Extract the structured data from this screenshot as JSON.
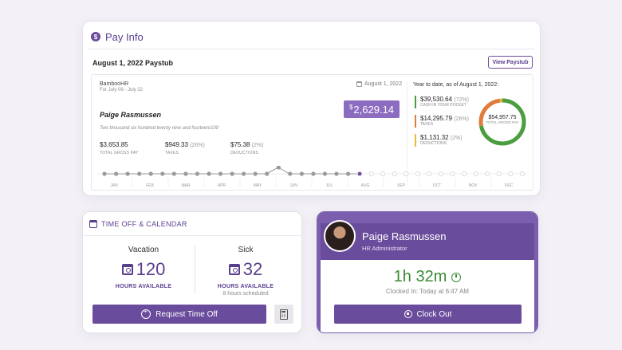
{
  "pay_info": {
    "title": "Pay Info",
    "paystub_date": "August 1, 2022 Paystub",
    "view_button": "View Paystub",
    "company": "BambooHR",
    "period": "For July 09 - July 22",
    "stub_date": "August 1, 2022",
    "payee": "Paige Rasmussen",
    "net_currency": "$",
    "net_amount": "2,629.14",
    "amount_words": "Two thousand six hundred twenty nine and fourteen/100",
    "summary": [
      {
        "value": "$3,653.85",
        "pct": "",
        "label": "TOTAL GROSS PAY"
      },
      {
        "value": "$949.33",
        "pct": "(26%)",
        "label": "TAXES"
      },
      {
        "value": "$75.38",
        "pct": "(2%)",
        "label": "DEDUCTIONS"
      }
    ],
    "ytd_title": "Year to date, as of August 1, 2022:",
    "ytd": [
      {
        "value": "$39,530.64",
        "pct": "(72%)",
        "label": "CASH IN YOUR POCKET",
        "color": "#4a9e3f"
      },
      {
        "value": "$14,295.79",
        "pct": "(26%)",
        "label": "TAXES",
        "color": "#e07b39"
      },
      {
        "value": "$1,131.32",
        "pct": "(2%)",
        "label": "DEDUCTIONS",
        "color": "#e8b93c"
      }
    ],
    "ytd_total": "$54,957.75",
    "ytd_total_label": "TOTAL GROSS PAY",
    "months": [
      "JAN",
      "FEB",
      "MAR",
      "APR",
      "MAY",
      "JUN",
      "JUL",
      "AUG",
      "SEP",
      "OCT",
      "NOV",
      "DEC"
    ]
  },
  "time_off": {
    "title": "TIME OFF & CALENDAR",
    "vacation": {
      "title": "Vacation",
      "hours": "120",
      "label": "HOURS AVAILABLE"
    },
    "sick": {
      "title": "Sick",
      "hours": "32",
      "label": "HOURS AVAILABLE",
      "scheduled": "8 hours scheduled"
    },
    "request_button": "Request Time Off"
  },
  "clock": {
    "name": "Paige Rasmussen",
    "role": "HR Administrator",
    "elapsed": "1h 32m",
    "clocked_in": "Clocked In: Today at 6:47 AM",
    "clock_out_button": "Clock Out"
  },
  "colors": {
    "accent": "#6a4c9c",
    "green": "#3a8a32"
  }
}
